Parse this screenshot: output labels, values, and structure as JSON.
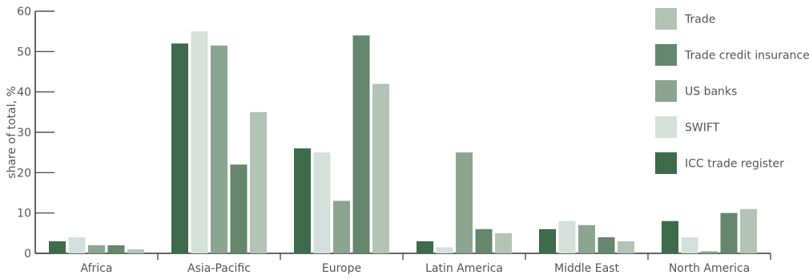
{
  "chart_data": {
    "type": "bar",
    "title": "",
    "xlabel": "",
    "ylabel": "share of total, %",
    "ylim": [
      0,
      60
    ],
    "yticks": [
      0,
      10,
      20,
      30,
      40,
      50,
      60
    ],
    "categories": [
      "Africa",
      "Asia-Pacific",
      "Europe",
      "Latin America",
      "Middle East",
      "North America"
    ],
    "series": [
      {
        "name": "ICC trade register",
        "color": "#3d6b4b",
        "values": [
          3,
          52,
          26,
          3,
          6,
          8
        ]
      },
      {
        "name": "SWIFT",
        "color": "#d6e0da",
        "values": [
          4,
          55,
          25,
          1.5,
          8,
          4
        ]
      },
      {
        "name": "US banks",
        "color": "#8ca590",
        "values": [
          2,
          51.5,
          13,
          25,
          7,
          0.5
        ]
      },
      {
        "name": "Trade credit insurance",
        "color": "#64876d",
        "values": [
          2,
          22,
          54,
          6,
          4,
          10
        ]
      },
      {
        "name": "Trade",
        "color": "#b3c4b7",
        "values": [
          1,
          35,
          42,
          5,
          3,
          11
        ]
      }
    ],
    "legend": {
      "position": "right",
      "order": [
        "Trade",
        "Trade credit insurance",
        "US banks",
        "SWIFT",
        "ICC trade register"
      ]
    },
    "grid": false
  }
}
